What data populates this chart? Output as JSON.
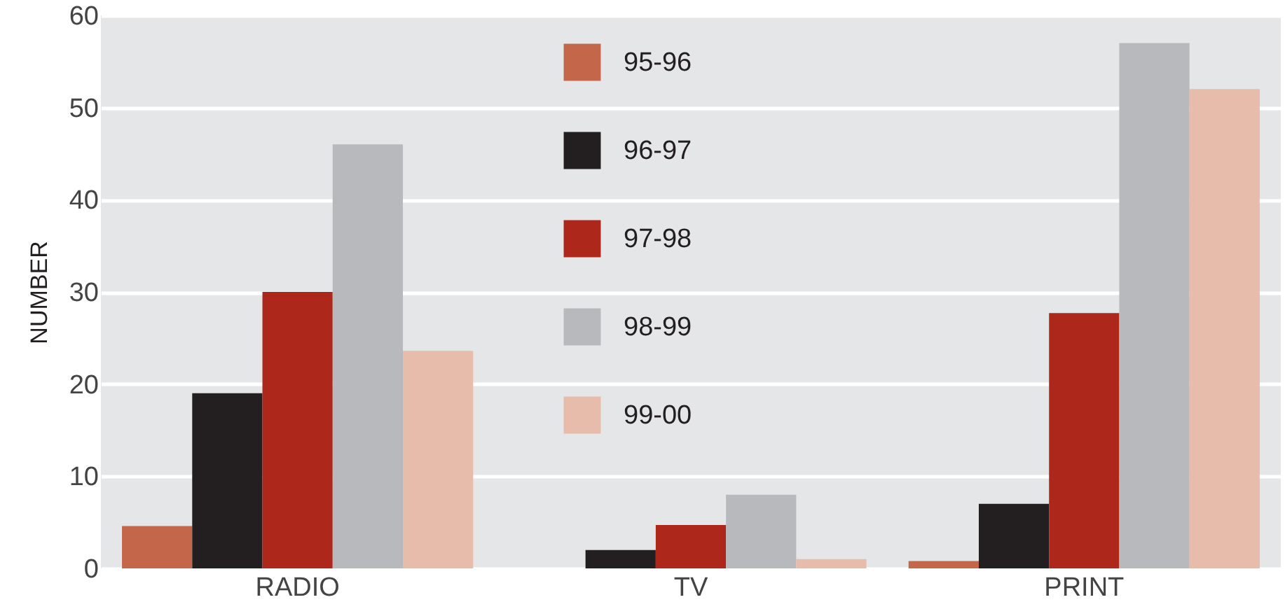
{
  "chart_data": {
    "type": "bar",
    "ylabel": "NUMBER",
    "categories": [
      "RADIO",
      "TV",
      "PRINT"
    ],
    "series": [
      {
        "name": "95-96",
        "color": "#c4664a",
        "values": [
          4.6,
          0,
          0.8
        ]
      },
      {
        "name": "96-97",
        "color": "#231f20",
        "values": [
          19,
          2,
          7
        ]
      },
      {
        "name": "97-98",
        "color": "#ad271b",
        "values": [
          30,
          4.7,
          27.7
        ]
      },
      {
        "name": "98-99",
        "color": "#b8b9bc",
        "values": [
          46,
          8,
          57
        ]
      },
      {
        "name": "99-00",
        "color": "#e8bcab",
        "values": [
          23.6,
          1,
          52
        ]
      }
    ],
    "ylim": [
      0,
      60
    ],
    "yticks": [
      0,
      10,
      20,
      30,
      40,
      50,
      60
    ],
    "grid": "y",
    "legend": "top"
  }
}
